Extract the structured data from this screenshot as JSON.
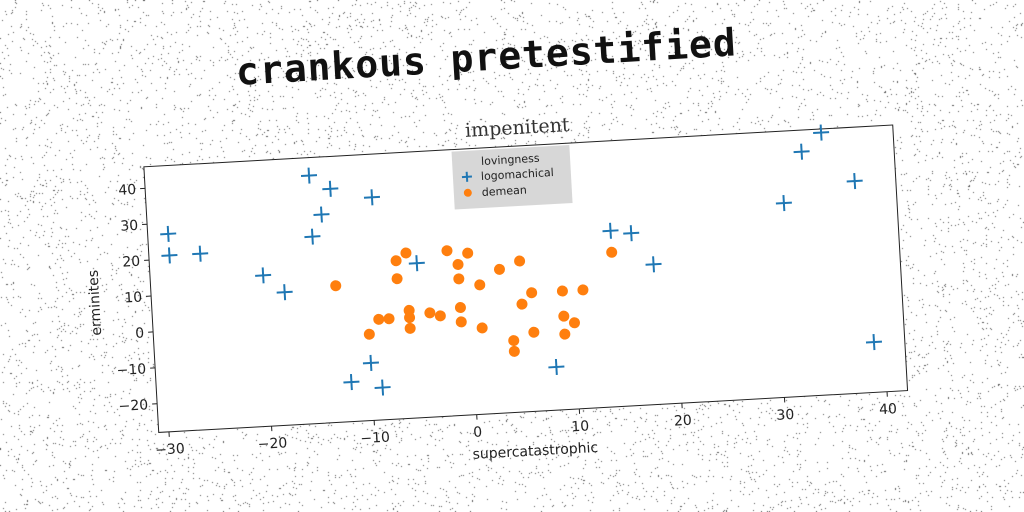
{
  "headline": "crankous pretestified",
  "chart_data": {
    "type": "scatter",
    "title": "impenitent",
    "xlabel": "supercatastrophic",
    "ylabel": "erminites",
    "xlim": [
      -31,
      42
    ],
    "ylim": [
      -28,
      46
    ],
    "xticks": [
      -30,
      -20,
      -10,
      0,
      10,
      20,
      30,
      40
    ],
    "yticks": [
      -20,
      -10,
      0,
      10,
      20,
      30,
      40
    ],
    "xtick_labels": [
      "−30",
      "−20",
      "−10",
      "0",
      "10",
      "20",
      "30",
      "40"
    ],
    "ytick_labels": [
      "−20",
      "−10",
      "0",
      "10",
      "20",
      "30",
      "40"
    ],
    "grid": false,
    "legend": {
      "title": "lovingness",
      "position": "top-center",
      "background": "#d3d3d3"
    },
    "series": [
      {
        "name": "logomachical",
        "marker": "plus",
        "color": "#1f77b4",
        "points": [
          [
            -29,
            27
          ],
          [
            -29,
            21
          ],
          [
            -26,
            21
          ],
          [
            -20,
            14
          ],
          [
            -18,
            9
          ],
          [
            -15,
            41
          ],
          [
            -13,
            37
          ],
          [
            -14,
            30
          ],
          [
            -15,
            24
          ],
          [
            -9,
            34
          ],
          [
            -10,
            -12
          ],
          [
            -12,
            -17
          ],
          [
            -9,
            -19
          ],
          [
            -5,
            15
          ],
          [
            8,
            -16
          ],
          [
            14,
            21
          ],
          [
            16,
            20
          ],
          [
            18,
            11
          ],
          [
            31,
            26
          ],
          [
            33,
            40
          ],
          [
            35,
            45
          ],
          [
            38,
            31
          ],
          [
            39,
            -14
          ]
        ]
      },
      {
        "name": "demean",
        "marker": "circle",
        "color": "#ff7f0e",
        "points": [
          [
            -13,
            10
          ],
          [
            -7,
            16
          ],
          [
            -6,
            18
          ],
          [
            -7,
            11
          ],
          [
            -10,
            -4
          ],
          [
            -9,
            0
          ],
          [
            -8,
            0
          ],
          [
            -6,
            2
          ],
          [
            -6,
            0
          ],
          [
            -6,
            -3
          ],
          [
            -4,
            1
          ],
          [
            -3,
            0
          ],
          [
            -2,
            18
          ],
          [
            -1,
            14
          ],
          [
            -1,
            10
          ],
          [
            0,
            17
          ],
          [
            1,
            8
          ],
          [
            -1,
            2
          ],
          [
            -1,
            -2
          ],
          [
            1,
            -4
          ],
          [
            3,
            12
          ],
          [
            5,
            14
          ],
          [
            5,
            2
          ],
          [
            6,
            5
          ],
          [
            6,
            -6
          ],
          [
            4,
            -8
          ],
          [
            4,
            -11
          ],
          [
            9,
            5
          ],
          [
            9,
            -2
          ],
          [
            9,
            -7
          ],
          [
            10,
            -4
          ],
          [
            11,
            5
          ],
          [
            14,
            15
          ]
        ]
      }
    ]
  }
}
